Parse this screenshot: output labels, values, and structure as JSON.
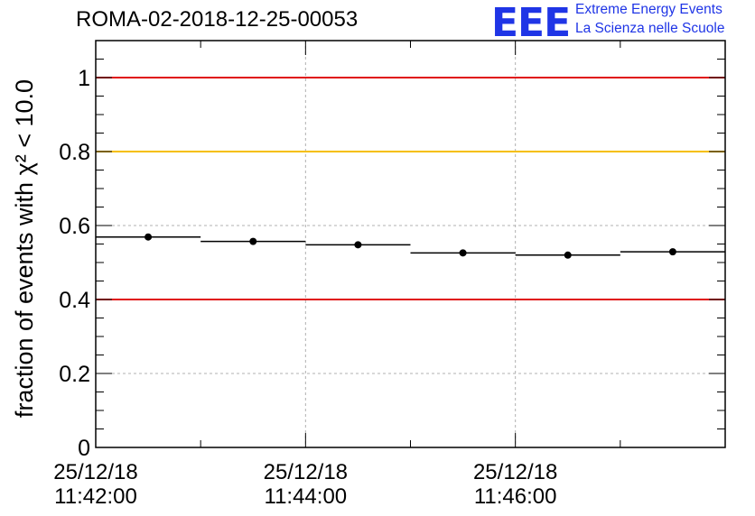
{
  "header": {
    "title": "ROMA-02-2018-12-25-00053",
    "logo_mark": "EEE",
    "logo_line1": "Extreme Energy Events",
    "logo_line2": "La Scienza nelle Scuole"
  },
  "chart_data": {
    "type": "scatter",
    "title": "ROMA-02-2018-12-25-00053",
    "ylabel": "fraction of events with χ² < 10.0",
    "xlabel": "",
    "ylim": [
      0,
      1.1
    ],
    "xlim": [
      "25/12/18 11:42:00",
      "25/12/18 11:48:00"
    ],
    "yticks": [
      "0",
      "0.2",
      "0.4",
      "0.6",
      "0.8",
      "1"
    ],
    "ytick_values": [
      0,
      0.2,
      0.4,
      0.6,
      0.8,
      1.0
    ],
    "xticks": [
      {
        "date": "25/12/18",
        "time": "11:42:00"
      },
      {
        "date": "25/12/18",
        "time": "11:44:00"
      },
      {
        "date": "25/12/18",
        "time": "11:46:00"
      }
    ],
    "grid": true,
    "reference_lines": [
      {
        "y": 1.0,
        "color": "#e01010"
      },
      {
        "y": 0.8,
        "color": "#f5bf00"
      },
      {
        "y": 0.4,
        "color": "#e01010"
      }
    ],
    "series": [
      {
        "x_bins": [
          [
            "11:42:00",
            "11:43:00"
          ],
          [
            "11:43:00",
            "11:44:00"
          ],
          [
            "11:44:00",
            "11:45:00"
          ],
          [
            "11:45:00",
            "11:46:00"
          ],
          [
            "11:46:00",
            "11:47:00"
          ],
          [
            "11:47:00",
            "11:48:00"
          ]
        ],
        "values": [
          0.569,
          0.557,
          0.548,
          0.526,
          0.52,
          0.529
        ],
        "errors": [
          0.008,
          0.008,
          0.008,
          0.008,
          0.008,
          0.008
        ],
        "color": "#000000"
      }
    ]
  }
}
